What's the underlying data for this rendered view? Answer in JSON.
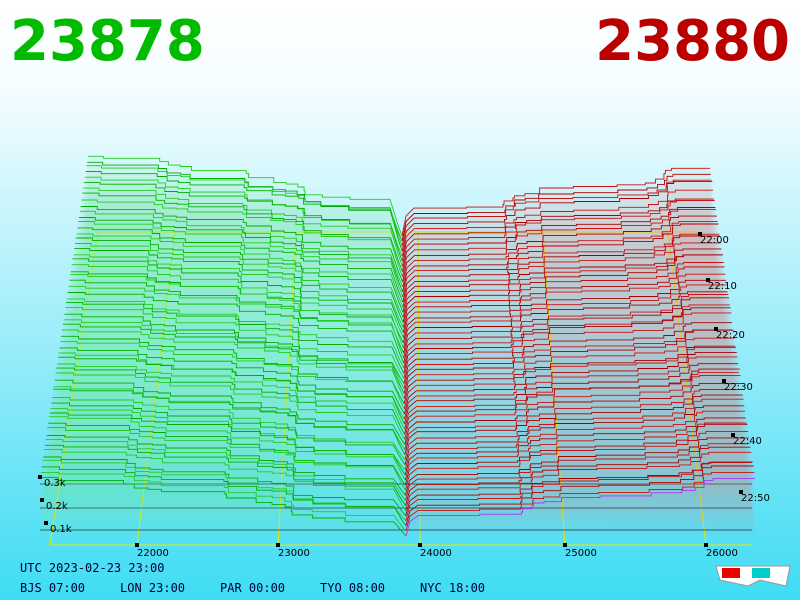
{
  "header": {
    "bid": "23878",
    "ask": "23880"
  },
  "price_axis": [
    "22000",
    "23000",
    "24000",
    "25000",
    "26000"
  ],
  "time_axis": [
    "22:00",
    "22:10",
    "22:20",
    "22:30",
    "22:40",
    "22:50"
  ],
  "depth_axis": [
    "0.3k",
    "0.2k",
    "0.1k"
  ],
  "footer": {
    "utc": "UTC 2023-02-23 23:00",
    "zones": [
      "BJS 07:00",
      "LON 23:00",
      "PAR 00:00",
      "TYO 08:00",
      "NYC 18:00"
    ]
  }
}
